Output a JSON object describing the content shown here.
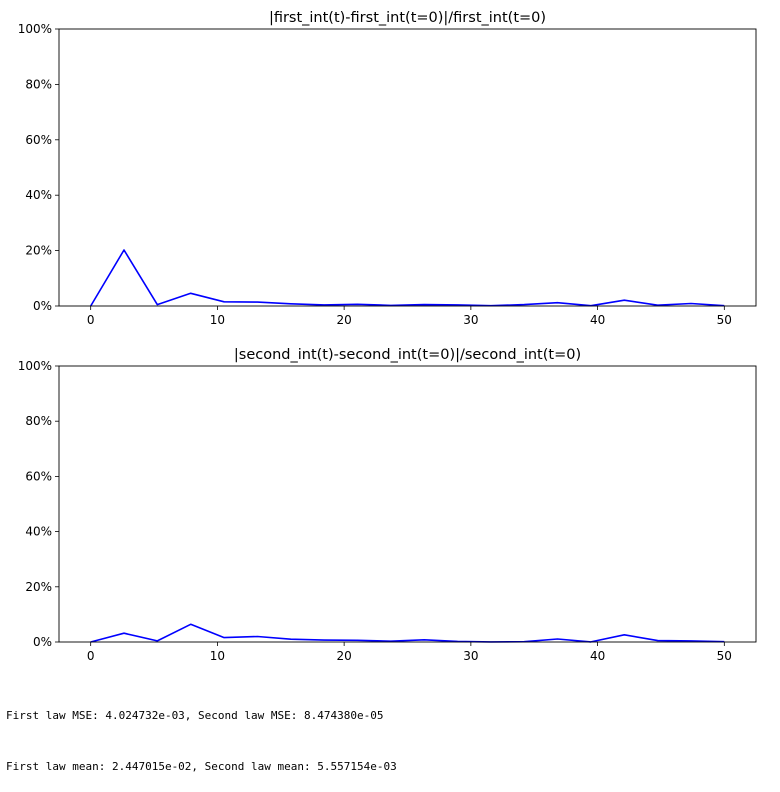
{
  "chart_data": [
    {
      "type": "line",
      "title": "|first_int(t)-first_int(t=0)|/first_int(t=0)",
      "xlabel": "",
      "ylabel": "",
      "xlim": [
        -2.5,
        52.5
      ],
      "ylim": [
        0,
        100
      ],
      "x_ticks": [
        0,
        10,
        20,
        30,
        40,
        50
      ],
      "y_ticks": [
        0,
        20,
        40,
        60,
        80,
        100
      ],
      "x_tick_labels": [
        "0",
        "10",
        "20",
        "30",
        "40",
        "50"
      ],
      "y_tick_labels": [
        "0%",
        "20%",
        "40%",
        "60%",
        "80%",
        "100%"
      ],
      "grid": false,
      "color": "#0000ff",
      "x": [
        0,
        2.63,
        5.26,
        7.89,
        10.53,
        13.16,
        15.79,
        18.42,
        21.05,
        23.68,
        26.32,
        28.95,
        31.58,
        34.21,
        36.84,
        39.47,
        42.11,
        44.74,
        47.37,
        50
      ],
      "y": [
        0.0,
        20.2,
        0.5,
        4.6,
        1.5,
        1.4,
        0.8,
        0.4,
        0.6,
        0.2,
        0.5,
        0.4,
        0.1,
        0.5,
        1.2,
        0.1,
        2.1,
        0.3,
        0.9,
        0.1
      ]
    },
    {
      "type": "line",
      "title": "|second_int(t)-second_int(t=0)|/second_int(t=0)",
      "xlabel": "",
      "ylabel": "",
      "xlim": [
        -2.5,
        52.5
      ],
      "ylim": [
        0,
        100
      ],
      "x_ticks": [
        0,
        10,
        20,
        30,
        40,
        50
      ],
      "y_ticks": [
        0,
        20,
        40,
        60,
        80,
        100
      ],
      "x_tick_labels": [
        "0",
        "10",
        "20",
        "30",
        "40",
        "50"
      ],
      "y_tick_labels": [
        "0%",
        "20%",
        "40%",
        "60%",
        "80%",
        "100%"
      ],
      "grid": false,
      "color": "#0000ff",
      "x": [
        0,
        2.63,
        5.26,
        7.89,
        10.53,
        13.16,
        15.79,
        18.42,
        21.05,
        23.68,
        26.32,
        28.95,
        31.58,
        34.21,
        36.84,
        39.47,
        42.11,
        44.74,
        47.37,
        50
      ],
      "y": [
        0.0,
        3.2,
        0.4,
        6.4,
        1.6,
        2.0,
        1.0,
        0.7,
        0.6,
        0.3,
        0.8,
        0.2,
        0.05,
        0.1,
        1.1,
        0.05,
        2.6,
        0.5,
        0.4,
        0.1
      ]
    }
  ],
  "stats": {
    "line1": "First law MSE: 4.024732e-03, Second law MSE: 8.474380e-05",
    "line2": "First law mean: 2.447015e-02, Second law mean: 5.557154e-03"
  }
}
